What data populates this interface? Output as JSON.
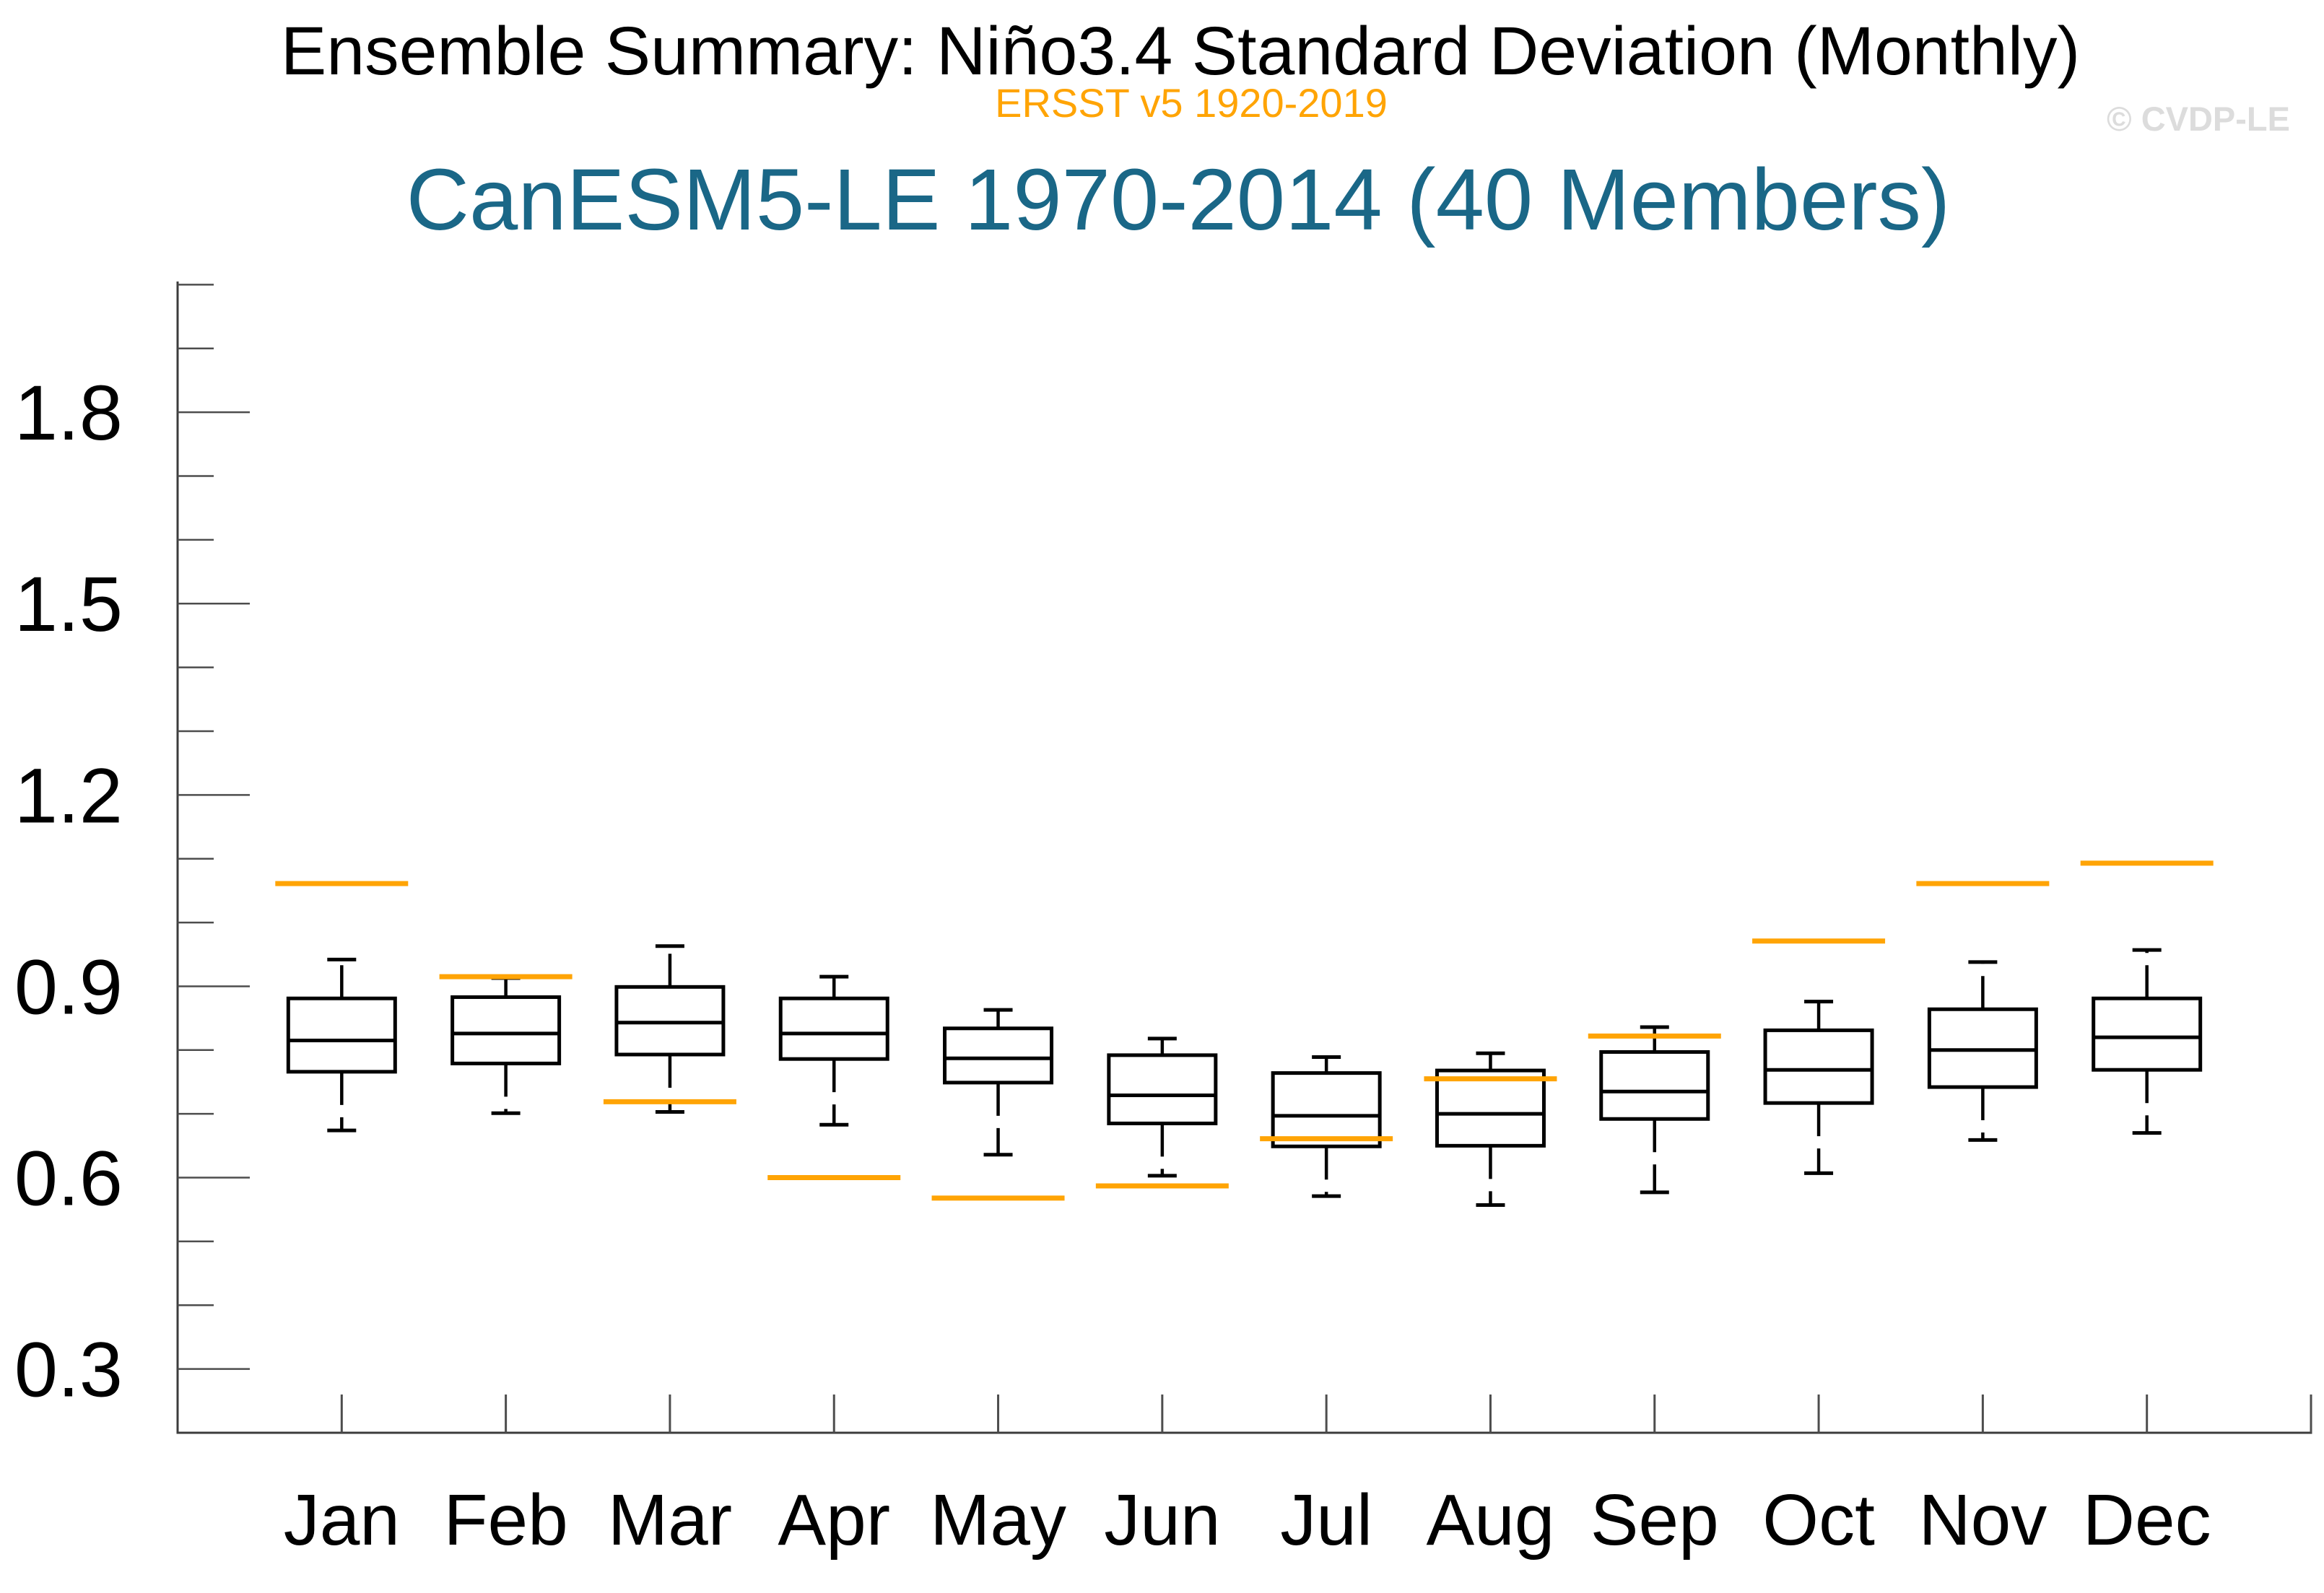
{
  "header": {
    "title": "Ensemble Summary: Niño3.4 Standard Deviation (Monthly)",
    "subtitle": "ERSST v5 1920-2019",
    "model_title": "CanESM5-LE 1970-2014 (40 Members)",
    "watermark": "© CVDP-LE"
  },
  "colors": {
    "title": "#000000",
    "subtitle": "#FFA405",
    "model_title": "#1A6787",
    "watermark": "#DCDCDC",
    "box_stroke": "#000000",
    "obs_line": "#FFA405",
    "axis": "#3C3C3C",
    "tick": "#4D4D4D"
  },
  "chart_data": {
    "type": "boxplot",
    "title": "Ensemble Summary: Niño3.4 Standard Deviation (Monthly)",
    "subtitle": "ERSST v5 1920-2019",
    "model_label": "CanESM5-LE 1970-2014 (40 Members)",
    "categories": [
      "Jan",
      "Feb",
      "Mar",
      "Apr",
      "May",
      "Jun",
      "Jul",
      "Aug",
      "Sep",
      "Oct",
      "Nov",
      "Dec"
    ],
    "y_axis": {
      "min": 0.2,
      "max": 2.005,
      "major_ticks": [
        0.3,
        0.6,
        0.9,
        1.2,
        1.5,
        1.8
      ],
      "tick_labels": [
        "0.3",
        "0.6",
        "0.9",
        "1.2",
        "1.5",
        "1.8"
      ],
      "minor_tick_step": 0.1,
      "minor_tick_start": 0.3,
      "minor_tick_end": 2.0
    },
    "x_axis": {
      "range": [
        0,
        13
      ],
      "grid": false
    },
    "legend_position": "none",
    "series": [
      {
        "name": "ensemble-boxes",
        "type": "box",
        "data": [
          {
            "category": "Jan",
            "whisker_low": 0.674,
            "q1": 0.766,
            "median": 0.815,
            "q3": 0.881,
            "whisker_high": 0.942
          },
          {
            "category": "Feb",
            "whisker_low": 0.701,
            "q1": 0.779,
            "median": 0.826,
            "q3": 0.883,
            "whisker_high": 0.913
          },
          {
            "category": "Mar",
            "whisker_low": 0.703,
            "q1": 0.793,
            "median": 0.843,
            "q3": 0.899,
            "whisker_high": 0.963
          },
          {
            "category": "Apr",
            "whisker_low": 0.683,
            "q1": 0.786,
            "median": 0.826,
            "q3": 0.881,
            "whisker_high": 0.915
          },
          {
            "category": "May",
            "whisker_low": 0.636,
            "q1": 0.749,
            "median": 0.787,
            "q3": 0.834,
            "whisker_high": 0.863
          },
          {
            "category": "Jun",
            "whisker_low": 0.603,
            "q1": 0.685,
            "median": 0.729,
            "q3": 0.792,
            "whisker_high": 0.818
          },
          {
            "category": "Jul",
            "whisker_low": 0.571,
            "q1": 0.649,
            "median": 0.697,
            "q3": 0.764,
            "whisker_high": 0.789
          },
          {
            "category": "Aug",
            "whisker_low": 0.557,
            "q1": 0.65,
            "median": 0.7,
            "q3": 0.768,
            "whisker_high": 0.795
          },
          {
            "category": "Sep",
            "whisker_low": 0.577,
            "q1": 0.692,
            "median": 0.735,
            "q3": 0.797,
            "whisker_high": 0.836
          },
          {
            "category": "Oct",
            "whisker_low": 0.607,
            "q1": 0.717,
            "median": 0.769,
            "q3": 0.831,
            "whisker_high": 0.876
          },
          {
            "category": "Nov",
            "whisker_low": 0.659,
            "q1": 0.742,
            "median": 0.8,
            "q3": 0.864,
            "whisker_high": 0.938
          },
          {
            "category": "Dec",
            "whisker_low": 0.67,
            "q1": 0.769,
            "median": 0.82,
            "q3": 0.881,
            "whisker_high": 0.957
          }
        ]
      },
      {
        "name": "observed-ERSSTv5",
        "type": "horizontal-tick",
        "values": [
          1.061,
          0.915,
          0.719,
          0.6,
          0.568,
          0.587,
          0.661,
          0.755,
          0.822,
          0.971,
          1.061,
          1.093
        ]
      }
    ]
  }
}
